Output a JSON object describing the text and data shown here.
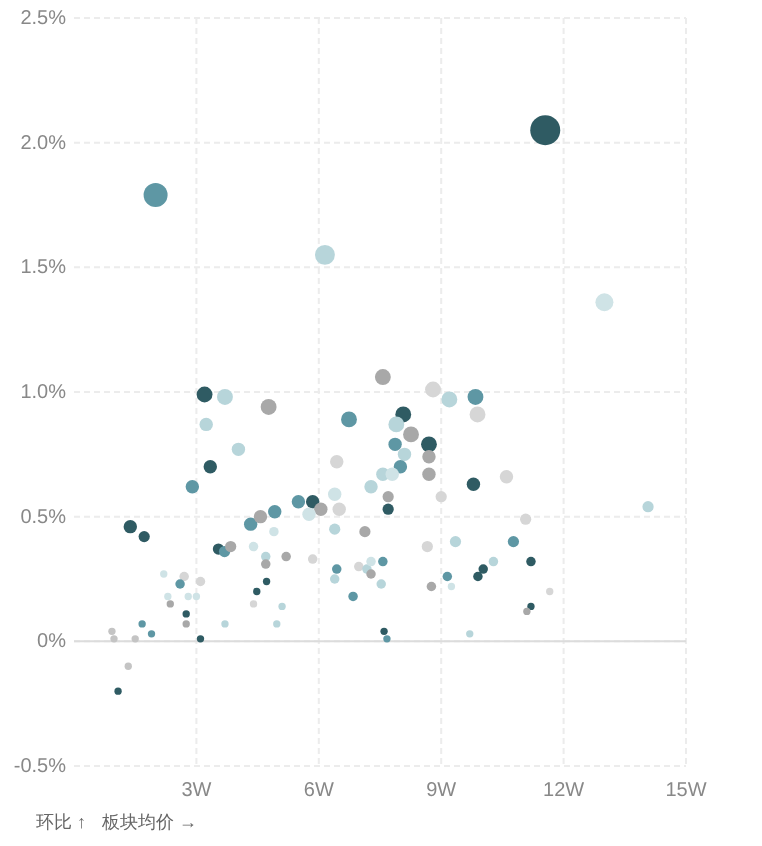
{
  "chart_data": {
    "type": "bubble",
    "xlabel": "板块均价 →",
    "ylabel": "环比 ↑",
    "xlim": [
      0,
      15
    ],
    "xticks": [
      {
        "value": 3,
        "label": "3W"
      },
      {
        "value": 6,
        "label": "6W"
      },
      {
        "value": 9,
        "label": "9W"
      },
      {
        "value": 12,
        "label": "12W"
      },
      {
        "value": 15,
        "label": "15W"
      }
    ],
    "ylim": [
      -0.5,
      2.5
    ],
    "yticks": [
      {
        "value": -0.5,
        "label": "-0.5%"
      },
      {
        "value": 0,
        "label": "0%"
      },
      {
        "value": 0.5,
        "label": "0.5%"
      },
      {
        "value": 1,
        "label": "1.0%"
      },
      {
        "value": 1.5,
        "label": "1.5%"
      },
      {
        "value": 2,
        "label": "2.0%"
      },
      {
        "value": 2.5,
        "label": "2.5%"
      }
    ],
    "grid": true,
    "x": [
      2.0,
      11.55,
      6.15,
      13.0,
      3.2,
      3.7,
      4.77,
      3.24,
      4.03,
      3.34,
      2.9,
      7.57,
      8.8,
      9.2,
      9.84,
      9.89,
      8.07,
      7.9,
      8.26,
      6.74,
      7.87,
      8.7,
      8.1,
      8.7,
      6.44,
      8.0,
      7.57,
      7.8,
      8.7,
      7.28,
      9.79,
      10.6,
      6.39,
      7.7,
      9.0,
      7.7,
      1.38,
      1.72,
      3.54,
      3.69,
      3.84,
      4.33,
      4.57,
      4.92,
      5.5,
      5.85,
      4.9,
      4.4,
      4.7,
      4.7,
      5.2,
      5.85,
      2.2,
      2.7,
      2.6,
      3.1,
      2.3,
      2.36,
      2.8,
      2.75,
      3.0,
      4.48,
      4.72,
      4.4,
      5.1,
      1.67,
      2.75,
      1.9,
      3.1,
      0.93,
      0.98,
      1.5,
      1.33,
      1.08,
      3.7,
      4.97,
      6.05,
      6.5,
      5.76,
      14.07,
      11.07,
      6.39,
      7.13,
      9.35,
      10.77,
      8.66,
      6.44,
      6.39,
      6.98,
      7.18,
      7.28,
      7.28,
      7.57,
      7.53,
      6.84,
      10.28,
      11.2,
      10.03,
      9.9,
      9.15,
      9.25,
      8.76,
      11.66,
      11.2,
      11.1,
      7.6,
      7.67,
      9.7
    ],
    "values": [
      1.79,
      2.05,
      1.55,
      1.36,
      0.99,
      0.98,
      0.94,
      0.87,
      0.77,
      0.7,
      0.62,
      1.06,
      1.01,
      0.97,
      0.98,
      0.91,
      0.91,
      0.87,
      0.83,
      0.89,
      0.79,
      0.79,
      0.75,
      0.74,
      0.72,
      0.7,
      0.67,
      0.67,
      0.67,
      0.62,
      0.63,
      0.66,
      0.59,
      0.58,
      0.58,
      0.53,
      0.46,
      0.42,
      0.37,
      0.36,
      0.38,
      0.47,
      0.5,
      0.52,
      0.56,
      0.56,
      0.44,
      0.38,
      0.34,
      0.31,
      0.34,
      0.33,
      0.27,
      0.26,
      0.23,
      0.24,
      0.18,
      0.15,
      0.18,
      0.11,
      0.18,
      0.2,
      0.24,
      0.15,
      0.14,
      0.07,
      0.07,
      0.03,
      0.01,
      0.04,
      0.01,
      0.01,
      -0.1,
      -0.2,
      0.07,
      0.07,
      0.53,
      0.53,
      0.51,
      0.54,
      0.49,
      0.45,
      0.44,
      0.4,
      0.4,
      0.38,
      0.29,
      0.25,
      0.3,
      0.29,
      0.32,
      0.27,
      0.32,
      0.23,
      0.18,
      0.32,
      0.32,
      0.29,
      0.26,
      0.26,
      0.22,
      0.22,
      0.2,
      0.14,
      0.12,
      0.04,
      0.01,
      0.03
    ],
    "sizes": [
      0.64,
      1,
      0.44,
      0.36,
      0.28,
      0.28,
      0.28,
      0.2,
      0.2,
      0.2,
      0.2,
      0.28,
      0.28,
      0.28,
      0.28,
      0.28,
      0.28,
      0.28,
      0.28,
      0.28,
      0.2,
      0.28,
      0.2,
      0.2,
      0.2,
      0.2,
      0.2,
      0.2,
      0.2,
      0.2,
      0.2,
      0.2,
      0.2,
      0.14,
      0.14,
      0.14,
      0.2,
      0.14,
      0.14,
      0.14,
      0.14,
      0.2,
      0.2,
      0.2,
      0.2,
      0.2,
      0.1,
      0.1,
      0.1,
      0.1,
      0.1,
      0.1,
      0.06,
      0.1,
      0.1,
      0.1,
      0.06,
      0.06,
      0.06,
      0.06,
      0.06,
      0.06,
      0.06,
      0.06,
      0.06,
      0.06,
      0.06,
      0.06,
      0.06,
      0.06,
      0.06,
      0.06,
      0.06,
      0.06,
      0.06,
      0.06,
      0.2,
      0.2,
      0.2,
      0.14,
      0.14,
      0.14,
      0.14,
      0.14,
      0.14,
      0.14,
      0.1,
      0.1,
      0.1,
      0.1,
      0.1,
      0.1,
      0.1,
      0.1,
      0.1,
      0.1,
      0.1,
      0.1,
      0.1,
      0.1,
      0.06,
      0.1,
      0.06,
      0.06,
      0.06,
      0.06,
      0.06,
      0.06
    ],
    "colors": [
      "#5e97a4",
      "#2f5b63",
      "#b7d5da",
      "#cfe3e6",
      "#2f5b63",
      "#b7d5da",
      "#a8a8a8",
      "#b7d5da",
      "#b7d5da",
      "#2f5b63",
      "#5e97a4",
      "#a8a8a8",
      "#d6d6d6",
      "#b7d5da",
      "#5e97a4",
      "#d6d6d6",
      "#2f5b63",
      "#b7d5da",
      "#a8a8a8",
      "#5e97a4",
      "#5e97a4",
      "#2f5b63",
      "#b7d5da",
      "#a8a8a8",
      "#d6d6d6",
      "#5e97a4",
      "#b7d5da",
      "#cfe3e6",
      "#a8a8a8",
      "#b7d5da",
      "#2f5b63",
      "#d6d6d6",
      "#cfe3e6",
      "#a8a8a8",
      "#d6d6d6",
      "#2f5b63",
      "#2f5b63",
      "#2f5b63",
      "#2f5b63",
      "#5e97a4",
      "#a8a8a8",
      "#5e97a4",
      "#a8a8a8",
      "#5e97a4",
      "#5e97a4",
      "#2f5b63",
      "#cfe3e6",
      "#cfe3e6",
      "#b7d5da",
      "#a8a8a8",
      "#a8a8a8",
      "#d6d6d6",
      "#cfe3e6",
      "#d6d6d6",
      "#5e97a4",
      "#d6d6d6",
      "#cfe3e6",
      "#a8a8a8",
      "#cfe3e6",
      "#2f5b63",
      "#cfe3e6",
      "#2f5b63",
      "#2f5b63",
      "#d6d6d6",
      "#b7d5da",
      "#5e97a4",
      "#a8a8a8",
      "#5e97a4",
      "#2f5b63",
      "#c4c4c4",
      "#c4c4c4",
      "#c4c4c4",
      "#c4c4c4",
      "#2f5b63",
      "#b7d5da",
      "#b7d5da",
      "#a8a8a8",
      "#d6d6d6",
      "#cfe3e6",
      "#b7d5da",
      "#d6d6d6",
      "#b7d5da",
      "#a8a8a8",
      "#b7d5da",
      "#5e97a4",
      "#d6d6d6",
      "#5e97a4",
      "#b7d5da",
      "#d6d6d6",
      "#b7d5da",
      "#cfe3e6",
      "#a8a8a8",
      "#5e97a4",
      "#b7d5da",
      "#5e97a4",
      "#b7d5da",
      "#2f5b63",
      "#2f5b63",
      "#2f5b63",
      "#5e97a4",
      "#cfe3e6",
      "#a8a8a8",
      "#d6d6d6",
      "#2f5b63",
      "#a8a8a8",
      "#2f5b63",
      "#5e97a4",
      "#b7d5da"
    ]
  }
}
